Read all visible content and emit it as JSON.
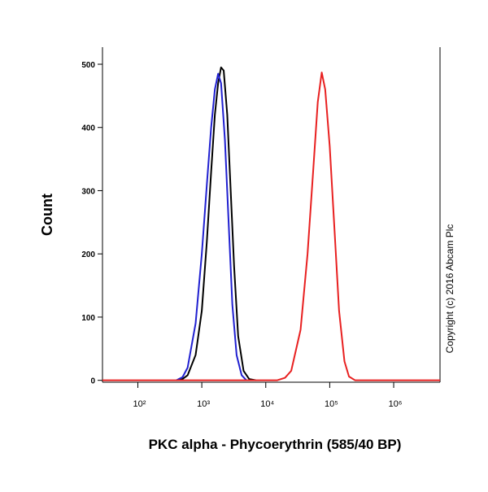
{
  "chart_data": {
    "type": "line",
    "y_label": "Count",
    "x_label": "PKC alpha - Phycoerythrin (585/40 BP)",
    "annotation": "Copyright (c) 2016 Abcam Plc",
    "x_log": true,
    "xlim": [
      28,
      5300000
    ],
    "ylim": [
      -3,
      527
    ],
    "yticks": [
      0,
      100,
      200,
      300,
      400,
      500
    ],
    "xticks": [
      {
        "value": 100,
        "label": "10²"
      },
      {
        "value": 1000,
        "label": "10³"
      },
      {
        "value": 10000,
        "label": "10⁴"
      },
      {
        "value": 100000,
        "label": "10⁵"
      },
      {
        "value": 1000000,
        "label": "10⁶"
      }
    ],
    "series": [
      {
        "color": "#000000",
        "x": [
          400,
          500,
          600,
          800,
          1000,
          1200,
          1400,
          1600,
          1800,
          2000,
          2200,
          2500,
          2800,
          3200,
          3700,
          4500,
          5500,
          7000
        ],
        "values": [
          0,
          2,
          8,
          40,
          110,
          220,
          330,
          420,
          470,
          495,
          490,
          420,
          310,
          180,
          70,
          15,
          2,
          0
        ]
      },
      {
        "color": "#2020d0",
        "x": [
          400,
          500,
          600,
          800,
          1000,
          1200,
          1400,
          1600,
          1800,
          2000,
          2300,
          2600,
          3000,
          3500,
          4200,
          5000
        ],
        "values": [
          0,
          5,
          20,
          90,
          200,
          310,
          400,
          460,
          485,
          470,
          380,
          260,
          120,
          40,
          8,
          0
        ]
      },
      {
        "color": "#e82020",
        "x": [
          28,
          15000,
          20000,
          25000,
          35000,
          45000,
          55000,
          65000,
          75000,
          85000,
          100000,
          120000,
          140000,
          170000,
          200000,
          250000,
          5300000
        ],
        "values": [
          0,
          0,
          4,
          15,
          80,
          200,
          330,
          440,
          487,
          460,
          370,
          230,
          110,
          30,
          6,
          0,
          0
        ]
      }
    ]
  }
}
